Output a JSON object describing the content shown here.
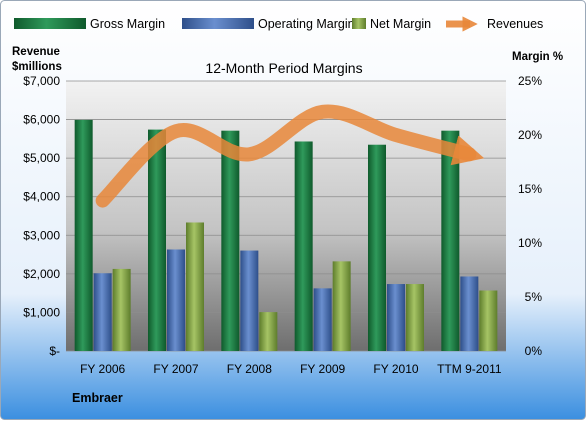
{
  "chart_data": {
    "type": "bar",
    "title": "12-Month Period Margins",
    "company": "Embraer",
    "categories": [
      "FY 2006",
      "FY 2007",
      "FY 2008",
      "FY 2009",
      "FY 2010",
      "TTM 9-2011"
    ],
    "left_axis": {
      "label_line1": "Revenue",
      "label_line2": "$millions",
      "range": [
        0,
        7000
      ],
      "tick_values": [
        0,
        1000,
        2000,
        3000,
        4000,
        5000,
        6000,
        7000
      ],
      "tick_labels": [
        "$-",
        "$1,000",
        "$2,000",
        "$3,000",
        "$4,000",
        "$5,000",
        "$6,000",
        "$7,000"
      ]
    },
    "right_axis": {
      "label": "Margin %",
      "range": [
        0,
        25
      ],
      "tick_values": [
        0,
        5,
        10,
        15,
        20,
        25
      ],
      "tick_labels": [
        "0%",
        "5%",
        "10%",
        "15%",
        "20%",
        "25%"
      ]
    },
    "series": [
      {
        "name": "Gross Margin",
        "kind": "bar",
        "axis": "right",
        "color": "#1e7f45",
        "values": [
          21.4,
          20.5,
          20.4,
          19.4,
          19.1,
          20.4
        ]
      },
      {
        "name": "Operating Margin",
        "kind": "bar",
        "axis": "right",
        "color": "#4a6fb0",
        "values": [
          7.2,
          9.4,
          9.3,
          5.8,
          6.2,
          6.9
        ]
      },
      {
        "name": "Net Margin",
        "kind": "bar",
        "axis": "right",
        "color": "#87a84a",
        "values": [
          7.6,
          11.9,
          3.6,
          8.3,
          6.2,
          5.6
        ]
      },
      {
        "name": "Revenues",
        "kind": "line",
        "axis": "left",
        "color": "#e8873a",
        "values": [
          3900,
          5700,
          5100,
          6200,
          5600,
          5100
        ]
      }
    ],
    "legend_position": "top",
    "grid": true
  }
}
